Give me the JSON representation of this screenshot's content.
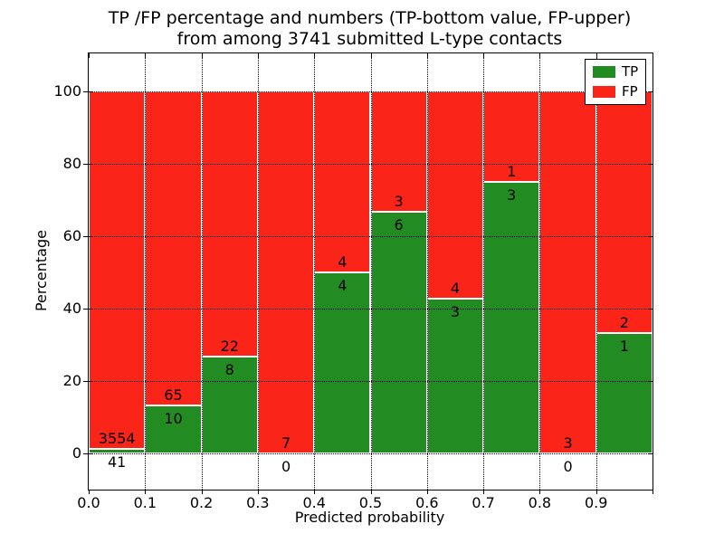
{
  "figure": {
    "title_line1": "TP /FP percentage and numbers (TP-bottom value, FP-upper)",
    "title_line2": "from among 3741 submitted L-type contacts"
  },
  "chart_data": {
    "type": "bar",
    "stacked": true,
    "title": "TP /FP percentage and numbers (TP-bottom value, FP-upper)\nfrom among 3741 submitted L-type contacts",
    "xlabel": "Predicted probability",
    "ylabel": "Percentage",
    "x_ticklabels": [
      "0.0",
      "0.1",
      "0.2",
      "0.3",
      "0.4",
      "0.5",
      "0.6",
      "0.7",
      "0.8",
      "0.9"
    ],
    "yticks": [
      0,
      20,
      40,
      60,
      80,
      100
    ],
    "ylim": [
      -10,
      110.5
    ],
    "xlim": [
      0.0,
      1.0
    ],
    "bin_width": 0.1,
    "bin_starts": [
      0.0,
      0.1,
      0.2,
      0.3,
      0.4,
      0.5,
      0.6,
      0.7,
      0.8,
      0.9
    ],
    "series": [
      {
        "name": "TP",
        "color": "#228b22",
        "counts": [
          41,
          10,
          8,
          0,
          4,
          6,
          3,
          3,
          0,
          1
        ]
      },
      {
        "name": "FP",
        "color": "#fa2419",
        "counts": [
          3554,
          65,
          22,
          7,
          4,
          3,
          4,
          1,
          3,
          2
        ]
      }
    ],
    "tp_percent": [
      1.1,
      13.3,
      26.7,
      0.0,
      50.0,
      66.7,
      42.9,
      75.0,
      0.0,
      33.3
    ],
    "total_submitted": 3741,
    "grid": true,
    "grid_style": "dotted",
    "legend_position": "upper right"
  }
}
